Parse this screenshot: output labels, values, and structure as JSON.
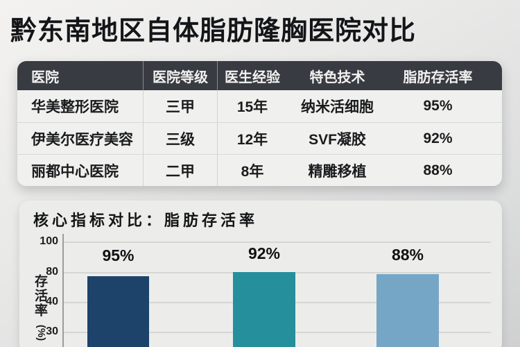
{
  "page": {
    "title": "黔东南地区自体脂肪隆胸医院对比"
  },
  "table": {
    "headers": [
      "医院",
      "医院等级",
      "医生经验",
      "特色技术",
      "脂肪存活率"
    ],
    "rows": [
      {
        "hospital": "华美整形医院",
        "level": "三甲",
        "experience": "15年",
        "technique": "纳米活细胞",
        "survival": "95%"
      },
      {
        "hospital": "伊美尔医疗美容",
        "level": "三级",
        "experience": "12年",
        "technique": "SVF凝胶",
        "survival": "92%"
      },
      {
        "hospital": "丽都中心医院",
        "level": "二甲",
        "experience": "8年",
        "technique": "精雕移植",
        "survival": "88%"
      }
    ]
  },
  "chart": {
    "title": "核心指标对比：脂肪存活率",
    "y_axis_label": "存活率",
    "y_axis_unit": "(%)",
    "y_ticks": [
      "100",
      "80",
      "40",
      "30"
    ],
    "bars": [
      {
        "label": "95%",
        "color": "#1e436b"
      },
      {
        "label": "92%",
        "color": "#25909b"
      },
      {
        "label": "88%",
        "color": "#76a6c6"
      }
    ]
  },
  "chart_data": {
    "type": "bar",
    "title": "核心指标对比：脂肪存活率",
    "categories": [
      "华美整形医院",
      "伊美尔医疗美容",
      "丽都中心医院"
    ],
    "values": [
      95,
      92,
      88
    ],
    "data_labels": [
      "95%",
      "92%",
      "88%"
    ],
    "xlabel": "",
    "ylabel": "存活率 (%)",
    "y_tick_labels": [
      100,
      80,
      40,
      30
    ],
    "grid": true,
    "legend": false,
    "bar_colors": [
      "#1e436b",
      "#25909b",
      "#76a6c6"
    ]
  }
}
